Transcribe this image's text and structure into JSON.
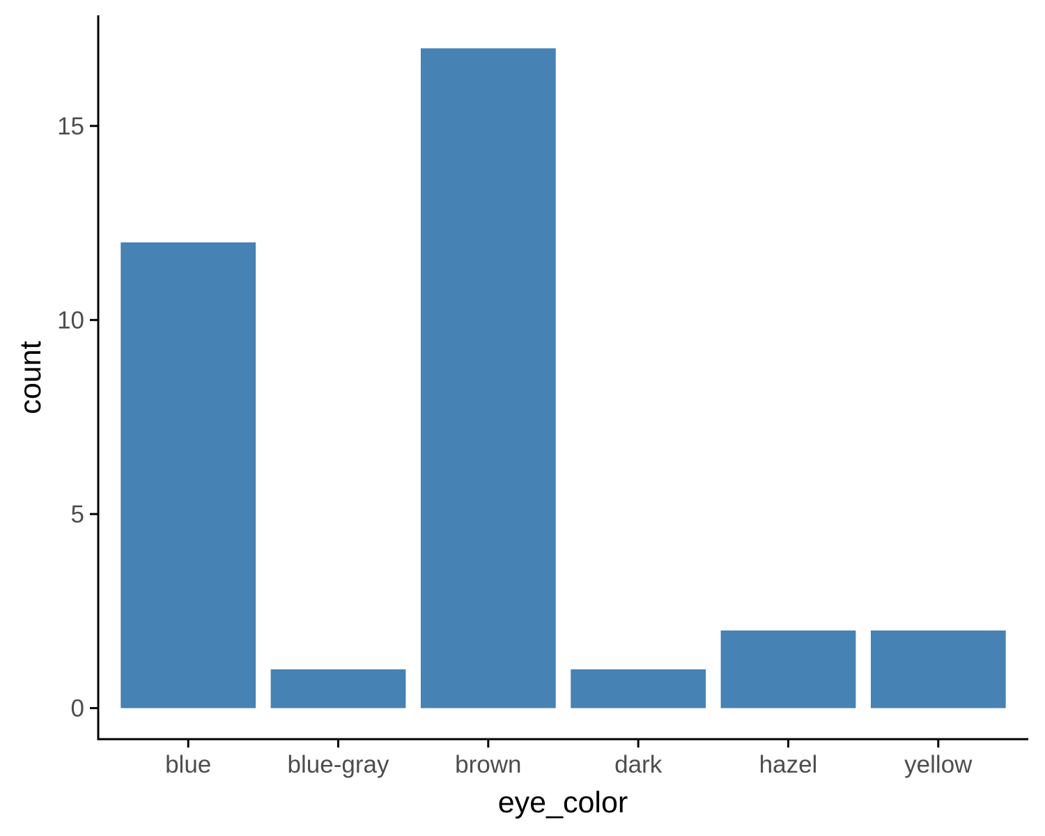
{
  "chart_data": {
    "type": "bar",
    "categories": [
      "blue",
      "blue-gray",
      "brown",
      "dark",
      "hazel",
      "yellow"
    ],
    "values": [
      12,
      1,
      17,
      1,
      2,
      2
    ],
    "title": "",
    "xlabel": "eye_color",
    "ylabel": "count",
    "ylim": [
      -0.8,
      17.85
    ],
    "yticks": [
      0,
      5,
      10,
      15
    ],
    "bar_color": "#4682B4",
    "axis_color": "#000000",
    "tick_label_color": "#4d4d4d",
    "grid": false,
    "legend": "none"
  }
}
